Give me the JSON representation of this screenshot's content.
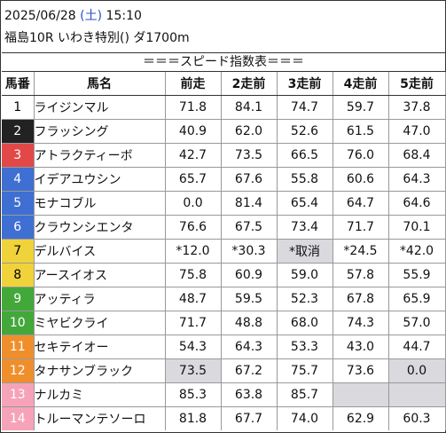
{
  "header": {
    "date": "2025/06/28",
    "weekday": "(土)",
    "time": "15:10",
    "race": "福島10R いわき特別() ダ1700m"
  },
  "section_title": "＝＝＝スピード指数表＝＝＝",
  "columns": [
    "馬番",
    "馬名",
    "前走",
    "2走前",
    "3走前",
    "4走前",
    "5走前"
  ],
  "colors": {
    "1": "#ffffff",
    "2": "#222222",
    "3": "#e34848",
    "4": "#3f6fd3",
    "5": "#3f6fd3",
    "6": "#3f6fd3",
    "7": "#f0d23a",
    "8": "#f0d23a",
    "9": "#43a83a",
    "10": "#43a83a",
    "11": "#ef8f2c",
    "12": "#ef8f2c",
    "13": "#f6a3b9",
    "14": "#f6a3b9",
    "gray_cell": "#d9d9de"
  },
  "rows": [
    {
      "no": "1",
      "name": "ライジンマル",
      "v": [
        "71.8",
        "84.1",
        "74.7",
        "59.7",
        "37.8"
      ]
    },
    {
      "no": "2",
      "name": "フラッシング",
      "v": [
        "40.9",
        "62.0",
        "52.6",
        "61.5",
        "47.0"
      ]
    },
    {
      "no": "3",
      "name": "アトラクティーボ",
      "v": [
        "42.7",
        "73.5",
        "66.5",
        "76.0",
        "68.4"
      ]
    },
    {
      "no": "4",
      "name": "イデアユウシン",
      "v": [
        "65.7",
        "67.6",
        "55.8",
        "60.6",
        "64.3"
      ]
    },
    {
      "no": "5",
      "name": "モナコブル",
      "v": [
        "0.0",
        "81.4",
        "65.4",
        "64.7",
        "64.6"
      ]
    },
    {
      "no": "6",
      "name": "クラウンシエンタ",
      "v": [
        "76.6",
        "67.5",
        "73.4",
        "71.7",
        "70.1"
      ]
    },
    {
      "no": "7",
      "name": "デルバイス",
      "v": [
        "*12.0",
        "*30.3",
        "*取消",
        "*24.5",
        "*42.0"
      ]
    },
    {
      "no": "8",
      "name": "アースイオス",
      "v": [
        "75.8",
        "60.9",
        "59.0",
        "57.8",
        "55.9"
      ]
    },
    {
      "no": "9",
      "name": "アッティラ",
      "v": [
        "48.7",
        "59.5",
        "52.3",
        "67.8",
        "65.9"
      ]
    },
    {
      "no": "10",
      "name": "ミヤビクライ",
      "v": [
        "71.7",
        "48.8",
        "68.0",
        "74.3",
        "57.0"
      ]
    },
    {
      "no": "11",
      "name": "セキテイオー",
      "v": [
        "54.3",
        "64.3",
        "53.3",
        "43.0",
        "44.7"
      ]
    },
    {
      "no": "12",
      "name": "タナサンブラック",
      "v": [
        "73.5",
        "67.2",
        "75.7",
        "73.6",
        "0.0"
      ]
    },
    {
      "no": "13",
      "name": "ナルカミ",
      "v": [
        "85.3",
        "63.8",
        "85.7",
        "",
        ""
      ]
    },
    {
      "no": "14",
      "name": "トルーマンテソーロ",
      "v": [
        "81.8",
        "67.7",
        "74.0",
        "62.9",
        "60.3"
      ]
    }
  ],
  "gray_cells": [
    [
      7,
      3
    ],
    [
      12,
      1
    ],
    [
      12,
      5
    ],
    [
      13,
      4
    ],
    [
      13,
      5
    ]
  ]
}
